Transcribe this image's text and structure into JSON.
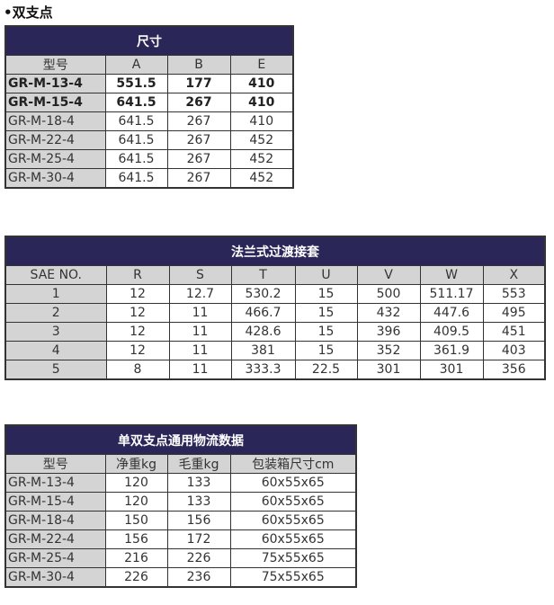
{
  "heading": "•双支点",
  "colors": {
    "title_bg": "#2b2658",
    "header_bg": "#d4d4d4"
  },
  "table1": {
    "title": "尺寸",
    "headers": [
      "型号",
      "A",
      "B",
      "E"
    ],
    "rows": [
      [
        "GR-M-13-4",
        "551.5",
        "177",
        "410"
      ],
      [
        "GR-M-15-4",
        "641.5",
        "267",
        "410"
      ],
      [
        "GR-M-18-4",
        "641.5",
        "267",
        "410"
      ],
      [
        "GR-M-22-4",
        "641.5",
        "267",
        "452"
      ],
      [
        "GR-M-25-4",
        "641.5",
        "267",
        "452"
      ],
      [
        "GR-M-30-4",
        "641.5",
        "267",
        "452"
      ]
    ]
  },
  "table2": {
    "title": "法兰式过渡接套",
    "headers": [
      "SAE NO.",
      "R",
      "S",
      "T",
      "U",
      "V",
      "W",
      "X"
    ],
    "rows": [
      [
        "1",
        "12",
        "12.7",
        "530.2",
        "15",
        "500",
        "511.17",
        "553"
      ],
      [
        "2",
        "12",
        "11",
        "466.7",
        "15",
        "432",
        "447.6",
        "495"
      ],
      [
        "3",
        "12",
        "11",
        "428.6",
        "15",
        "396",
        "409.5",
        "451"
      ],
      [
        "4",
        "12",
        "11",
        "381",
        "15",
        "352",
        "361.9",
        "403"
      ],
      [
        "5",
        "8",
        "11",
        "333.3",
        "22.5",
        "301",
        "301",
        "356"
      ]
    ]
  },
  "table3": {
    "title": "单双支点通用物流数据",
    "headers": [
      "型号",
      "净重kg",
      "毛重kg",
      "包装箱尺寸cm"
    ],
    "rows": [
      [
        "GR-M-13-4",
        "120",
        "133",
        "60x55x65"
      ],
      [
        "GR-M-15-4",
        "120",
        "133",
        "60x55x65"
      ],
      [
        "GR-M-18-4",
        "150",
        "156",
        "60x55x65"
      ],
      [
        "GR-M-22-4",
        "156",
        "172",
        "60x55x65"
      ],
      [
        "GR-M-25-4",
        "216",
        "226",
        "75x55x65"
      ],
      [
        "GR-M-30-4",
        "226",
        "236",
        "75x55x65"
      ]
    ]
  }
}
